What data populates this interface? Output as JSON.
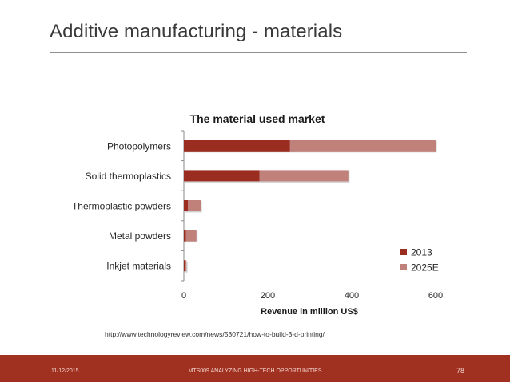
{
  "slide": {
    "title": "Additive manufacturing - materials",
    "source_url": "http://www.technologyreview.com/news/530721/how-to-build-3-d-printing/",
    "footer": {
      "date": "11/12/2015",
      "course": "MTS009 ANALYZING HIGH-TECH OPPORTUNITIES",
      "page": "78"
    }
  },
  "chart_data": {
    "type": "bar",
    "orientation": "horizontal",
    "stacked": true,
    "title": "The material used market",
    "xlabel": "Revenue in million US$",
    "ylabel": "",
    "categories": [
      "Photopolymers",
      "Solid thermoplastics",
      "Thermoplastic powders",
      "Metal powders",
      "Inkjet materials"
    ],
    "series": [
      {
        "name": "2013",
        "values": [
          253,
          180,
          10,
          5,
          2
        ],
        "color": "#9b2d20"
      },
      {
        "name": "2025E",
        "values": [
          347,
          212,
          30,
          25,
          4
        ],
        "color": "#c0817b"
      }
    ],
    "xlim": [
      0,
      600
    ],
    "xticks": [
      "0",
      "200",
      "400",
      "600"
    ],
    "legend": "bottom-right",
    "grid": false
  }
}
